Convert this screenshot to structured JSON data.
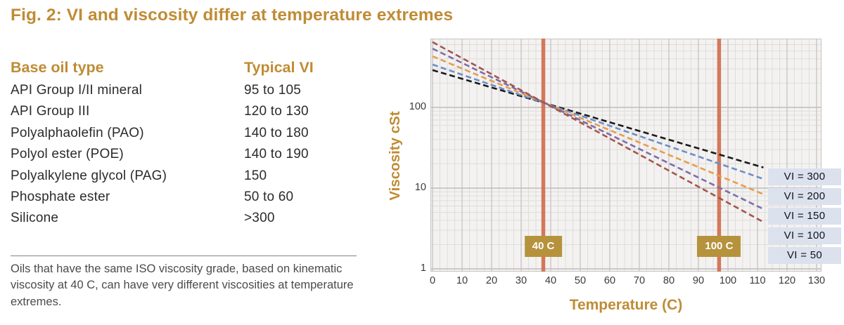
{
  "figure": {
    "title": "Fig. 2: VI and viscosity differ at temperature extremes"
  },
  "table": {
    "headers": {
      "type": "Base oil type",
      "vi": "Typical VI"
    },
    "rows": [
      {
        "type": "API Group I/II mineral",
        "vi": "95 to 105"
      },
      {
        "type": "API Group III",
        "vi": "120 to 130"
      },
      {
        "type": "Polyalphaolefin (PAO)",
        "vi": "140 to 180"
      },
      {
        "type": "Polyol ester (POE)",
        "vi": "140 to 190"
      },
      {
        "type": "Polyalkylene glycol (PAG)",
        "vi": "150"
      },
      {
        "type": "Phosphate ester",
        "vi": "50 to 60"
      },
      {
        "type": "Silicone",
        "vi": ">300"
      }
    ]
  },
  "caption": "Oils that have the same ISO viscosity grade, based on kinematic viscosity at 40 C, can have very different viscosities at temperature extremes.",
  "chart_data": {
    "type": "line",
    "xlabel": "Temperature (C)",
    "ylabel": "Viscosity cSt",
    "x_ticks": [
      0,
      10,
      20,
      30,
      40,
      50,
      60,
      70,
      80,
      90,
      100,
      110,
      120,
      130
    ],
    "y_ticks": [
      100,
      10,
      1
    ],
    "xlim": [
      0,
      132.5
    ],
    "ylim": [
      1,
      670
    ],
    "y_scale": "log",
    "grid": true,
    "legend_position": "right",
    "line_style": "dashed",
    "series": [
      {
        "name": "VI = 300",
        "color": "#1a1a1a",
        "points": [
          [
            0,
            290
          ],
          [
            112,
            18
          ]
        ]
      },
      {
        "name": "VI = 200",
        "color": "#6d8fc7",
        "points": [
          [
            0,
            340
          ],
          [
            112,
            13
          ]
        ]
      },
      {
        "name": "VI = 150",
        "color": "#e79d4f",
        "points": [
          [
            0,
            430
          ],
          [
            112,
            8.4
          ]
        ]
      },
      {
        "name": "VI = 100",
        "color": "#7e6ea8",
        "points": [
          [
            0,
            535
          ],
          [
            112,
            5.5
          ]
        ]
      },
      {
        "name": "VI = 50",
        "color": "#a3564e",
        "points": [
          [
            0,
            645
          ],
          [
            112,
            3.8
          ]
        ]
      }
    ],
    "markers": [
      {
        "label": "40 C",
        "x": 37.5
      },
      {
        "label": "100 C",
        "x": 97
      }
    ]
  },
  "colors": {
    "accent_gold": "#bf8c35",
    "badge_gold": "#b6923c",
    "marker_line": "#d06848",
    "legend_bg": "#dbe1ed",
    "text_dark": "#2b2b2b",
    "text_gray": "#4b4b4b"
  }
}
